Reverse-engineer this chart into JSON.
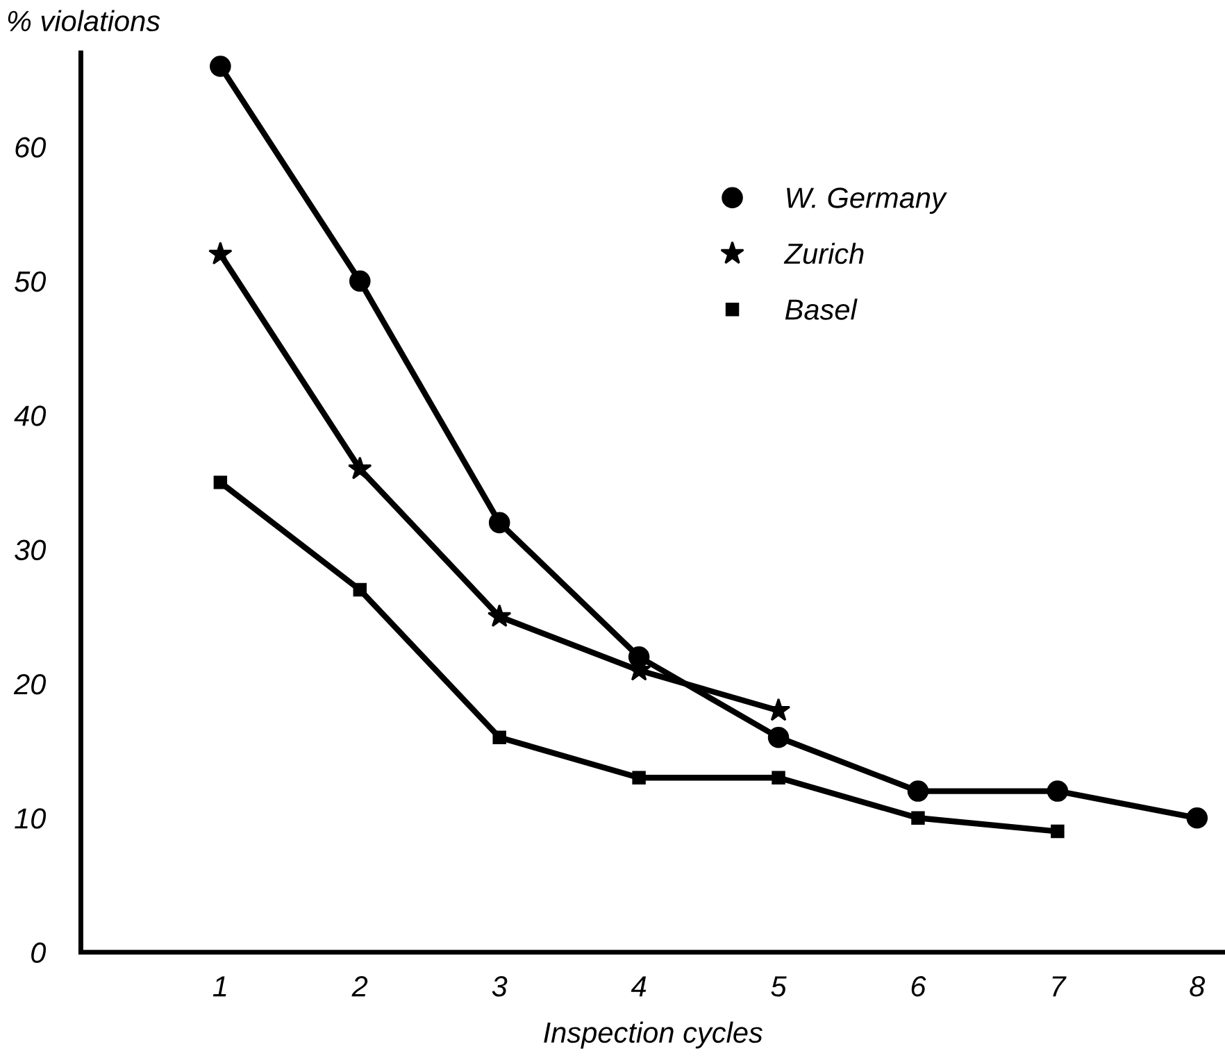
{
  "chart_data": {
    "type": "line",
    "xlabel": "Inspection cycles",
    "ylabel": "% violations",
    "series": [
      {
        "name": "W. Germany",
        "color": "#000000",
        "marker": "circle",
        "x": [
          1,
          2,
          3,
          4,
          5,
          6,
          7,
          8
        ],
        "values": [
          66,
          50,
          32,
          22,
          16,
          12,
          12,
          10
        ]
      },
      {
        "name": "Zurich",
        "color": "#000000",
        "marker": "star",
        "x": [
          1,
          2,
          3,
          4,
          5
        ],
        "values": [
          52,
          36,
          25,
          21,
          18
        ]
      },
      {
        "name": "Basel",
        "color": "#000000",
        "marker": "square",
        "x": [
          1,
          2,
          3,
          4,
          5,
          6,
          7
        ],
        "values": [
          35,
          27,
          16,
          13,
          13,
          10,
          9
        ]
      }
    ],
    "xlim": [
      0,
      8.2
    ],
    "xticks": [
      1,
      2,
      3,
      4,
      5,
      6,
      7,
      8
    ],
    "ylim": [
      0,
      67
    ],
    "yticks": [
      0,
      10,
      20,
      30,
      40,
      50,
      60
    ],
    "grid": false,
    "legend": "top",
    "line_style": "solid"
  }
}
